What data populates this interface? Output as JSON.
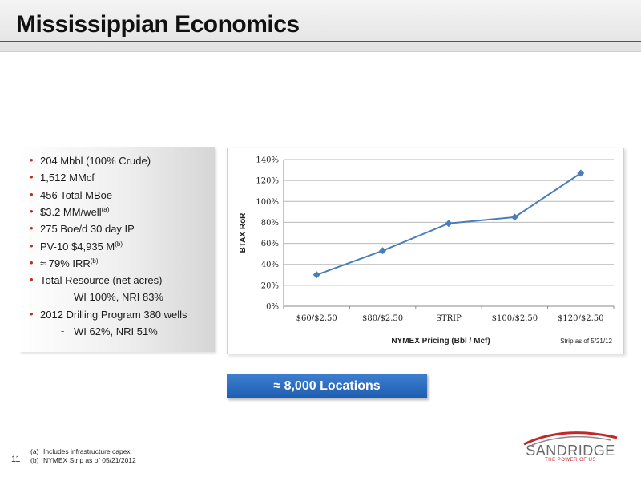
{
  "slide": {
    "title": "Mississippian Economics",
    "page_number": "11"
  },
  "bullets": [
    {
      "text": "204 Mbbl  (100% Crude)",
      "sup": "",
      "level": 1
    },
    {
      "text": "1,512 MMcf",
      "sup": "",
      "level": 1
    },
    {
      "text": "456 Total MBoe",
      "sup": "",
      "level": 1
    },
    {
      "text": "$3.2 MM/well",
      "sup": "(a)",
      "level": 1
    },
    {
      "text": "275 Boe/d 30 day IP",
      "sup": "",
      "level": 1
    },
    {
      "text": "PV-10 $4,935 M",
      "sup": "(b)",
      "level": 1
    },
    {
      "text": "≈ 79% IRR",
      "sup": "(b)",
      "level": 1
    },
    {
      "text": "Total Resource  (net acres)",
      "sup": "",
      "level": 1
    },
    {
      "text": "WI 100%, NRI 83%",
      "sup": "",
      "level": 2
    },
    {
      "text": "2012 Drilling Program 380 wells",
      "sup": "",
      "level": 1
    },
    {
      "text": "WI 62%, NRI 51%",
      "sup": "",
      "level": 2
    }
  ],
  "bullet_markers": {
    "level1": "•",
    "level2": "-"
  },
  "callout": {
    "label": "≈ 8,000  Locations"
  },
  "footnotes": [
    {
      "key": "(a)",
      "text": "Includes infrastructure capex"
    },
    {
      "key": "(b)",
      "text": "NYMEX Strip as of 05/21/2012"
    }
  ],
  "logo": {
    "word": "SANDRIDGE",
    "tagline": "THE POWER OF US"
  },
  "chart_data": {
    "type": "line",
    "categories": [
      "$60/$2.50",
      "$80/$2.50",
      "STRIP",
      "$100/$2.50",
      "$120/$2.50"
    ],
    "series": [
      {
        "values": [
          30,
          53,
          79,
          85,
          127
        ]
      }
    ],
    "ylabel": "BTAX RoR",
    "xlabel": "NYMEX Pricing (Bbl / Mcf)",
    "yticks": [
      "0%",
      "20%",
      "40%",
      "60%",
      "80%",
      "100%",
      "120%",
      "140%"
    ],
    "ylim": [
      0,
      140
    ],
    "grid": true,
    "annotation": "Strip as of 5/21/12",
    "colors": {
      "line": "#4a7ebb",
      "grid": "#b8b8b8"
    }
  },
  "colors": {
    "accent_red": "#c0282a",
    "button_blue": "#1e5eb1"
  }
}
